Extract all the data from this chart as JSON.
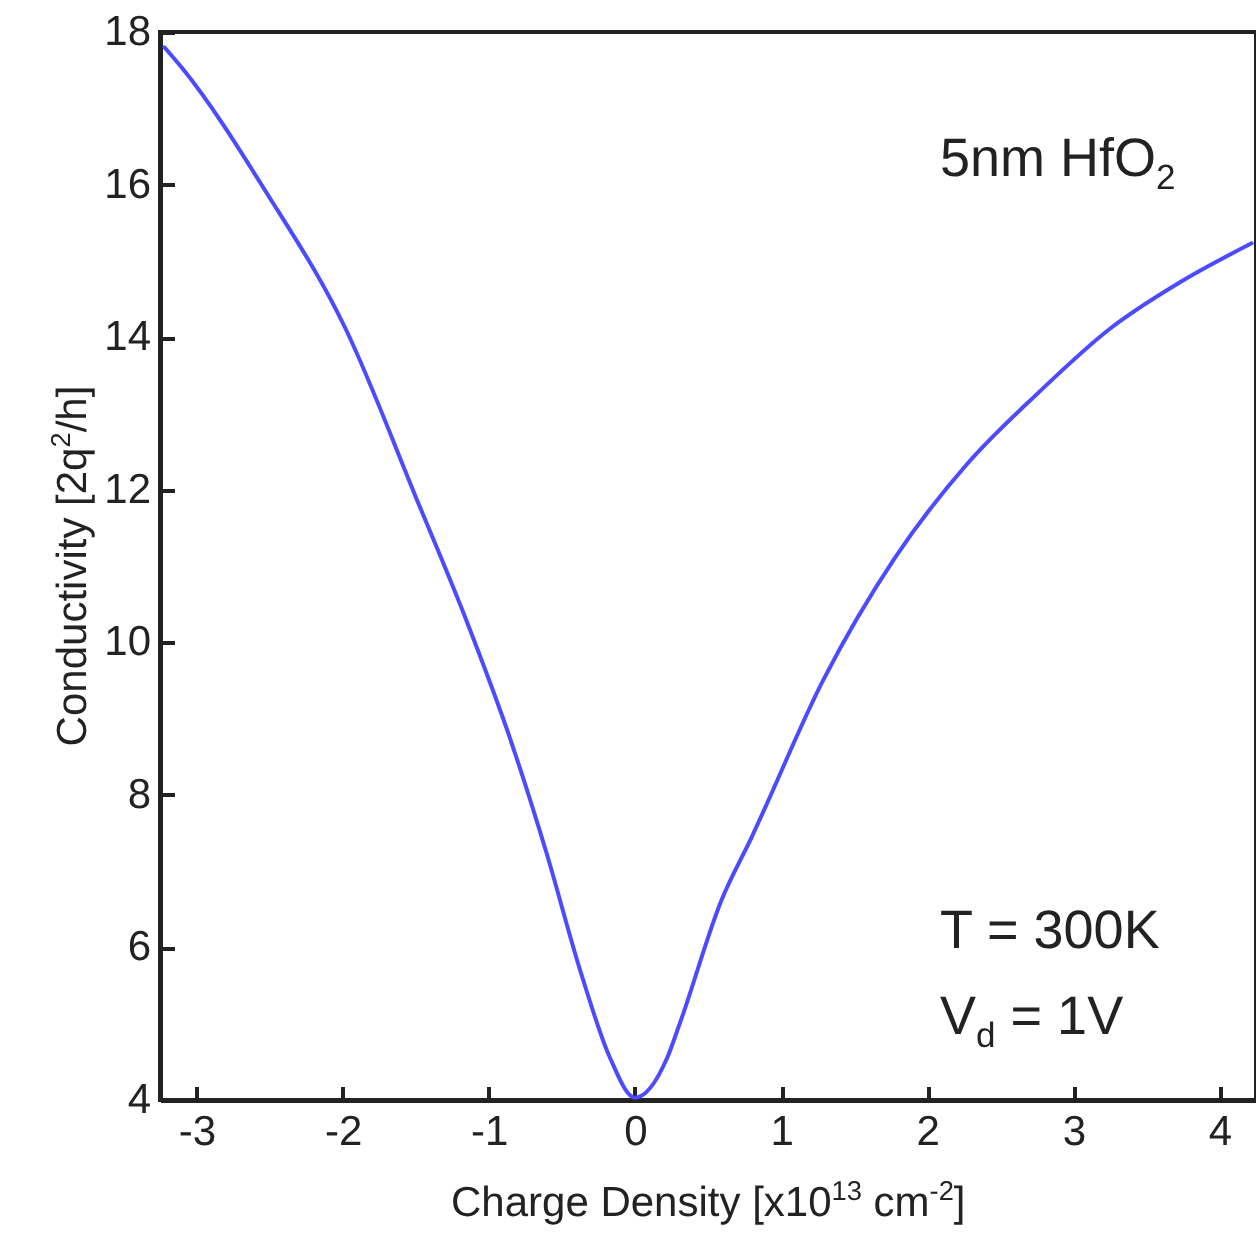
{
  "chart_data": {
    "type": "line",
    "xlabel": "Charge Density [x10$^{13}$ cm$^{-2}$]",
    "ylabel": "Conductivity [2q$^{2}$/h]",
    "annotations": [
      "5nm HfO$_{2}$",
      "T = 300K",
      "V$_{d}$ = 1V"
    ],
    "x": [
      -3.22,
      -3.1,
      -2.52,
      -1.98,
      -1.49,
      -1.15,
      -0.86,
      -0.61,
      -0.37,
      -0.17,
      0,
      0.22,
      0.31,
      0.59,
      0.8,
      1.29,
      1.78,
      2.27,
      2.76,
      3.25,
      3.73,
      4.22
    ],
    "series": [
      {
        "color": "#4b4bff",
        "values": [
          17.8,
          17.53,
          15.89,
          14.11,
          11.86,
          10.27,
          8.77,
          7.27,
          5.67,
          4.55,
          4.03,
          4.55,
          5.02,
          6.61,
          7.45,
          9.51,
          11.11,
          12.33,
          13.27,
          14.11,
          14.72,
          15.23
        ]
      }
    ],
    "xlim": [
      -3.25,
      4.25
    ],
    "ylim": [
      4,
      18
    ],
    "xticks": [
      -3,
      -2,
      -1,
      0,
      1,
      2,
      3,
      4
    ],
    "yticks": [
      4,
      6,
      8,
      10,
      12,
      14,
      16,
      18
    ],
    "grid": false,
    "marker": "none",
    "line_style": "solid"
  }
}
